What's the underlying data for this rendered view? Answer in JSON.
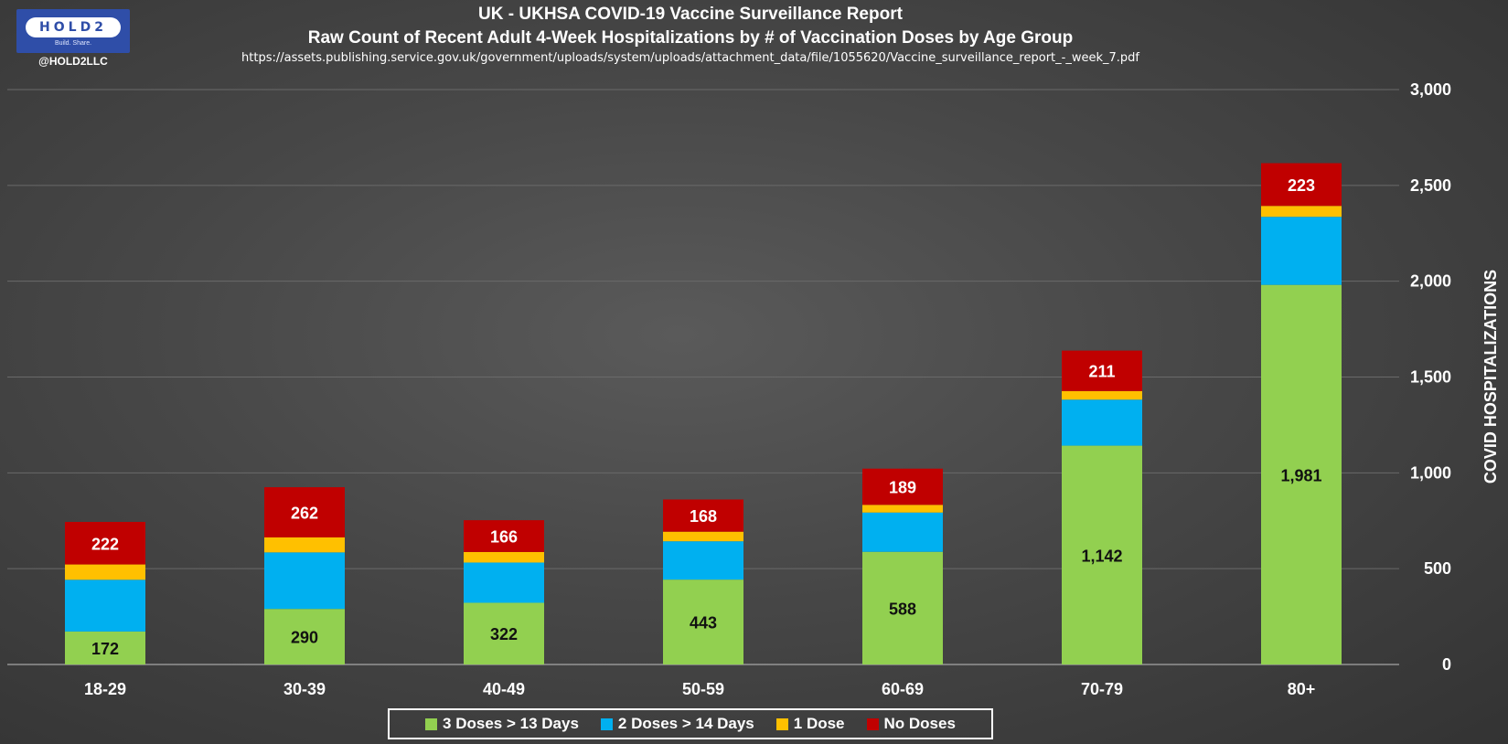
{
  "branding": {
    "logo_text": "HOLD2",
    "logo_tagline": "Build. Share.",
    "handle": "@HOLD2LLC"
  },
  "header": {
    "title": "UK - UKHSA COVID-19 Vaccine Surveillance Report",
    "subtitle": "Raw Count of Recent Adult 4-Week Hospitalizations by # of Vaccination Doses by Age Group",
    "source_url": "https://assets.publishing.service.gov.uk/government/uploads/system/uploads/attachment_data/file/1055620/Vaccine_surveillance_report_-_week_7.pdf"
  },
  "chart_data": {
    "type": "bar",
    "stacked": true,
    "title": "UK - UKHSA COVID-19 Vaccine Surveillance Report",
    "subtitle": "Raw Count of Recent Adult 4-Week Hospitalizations by # of Vaccination Doses by Age Group",
    "xlabel": "",
    "ylabel": "COVID HOSPITALIZATIONS",
    "y_axis_position": "right",
    "ylim": [
      0,
      3000
    ],
    "yticks": [
      0,
      500,
      1000,
      1500,
      2000,
      2500,
      3000
    ],
    "ytick_labels": [
      "0",
      "500",
      "1,000",
      "1,500",
      "2,000",
      "2,500",
      "3,000"
    ],
    "grid": true,
    "legend_position": "bottom",
    "categories": [
      "18-29",
      "30-39",
      "40-49",
      "50-59",
      "60-69",
      "70-79",
      "80+"
    ],
    "series": [
      {
        "name": "3 Doses > 13 Days",
        "color": "#92d050",
        "values": [
          172,
          290,
          322,
          443,
          588,
          1142,
          1981
        ],
        "labels": [
          "172",
          "290",
          "322",
          "443",
          "588",
          "1,142",
          "1,981"
        ],
        "label_color": "#111111"
      },
      {
        "name": "2 Doses > 14 Days",
        "color": "#00b0f0",
        "values": [
          270,
          295,
          210,
          200,
          205,
          240,
          355
        ],
        "labels": null
      },
      {
        "name": "1 Dose",
        "color": "#ffc000",
        "values": [
          80,
          78,
          55,
          50,
          40,
          45,
          57
        ],
        "labels": null
      },
      {
        "name": "No Doses",
        "color": "#c00000",
        "values": [
          222,
          262,
          166,
          168,
          189,
          211,
          223
        ],
        "labels": [
          "222",
          "262",
          "166",
          "168",
          "189",
          "211",
          "223"
        ],
        "label_color": "#ffffff"
      }
    ]
  }
}
